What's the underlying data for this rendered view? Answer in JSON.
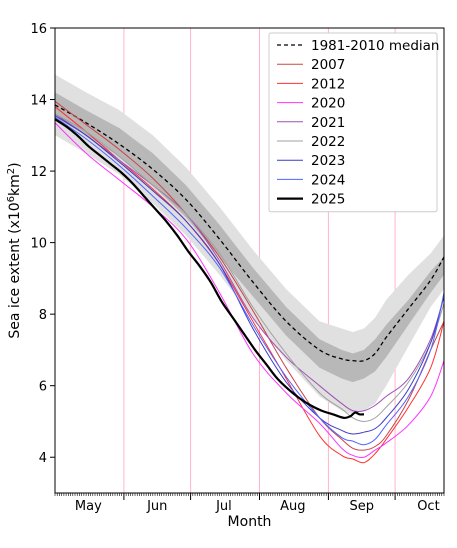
{
  "chart_data": {
    "type": "line",
    "xlabel": "Month",
    "ylabel_main": "Sea ice extent (x10",
    "ylabel_sup": "6",
    "ylabel_unit": "km",
    "ylabel_unit_sup": "2",
    "ylabel_close": ")",
    "ylim": [
      3,
      16
    ],
    "xlim_day_of_year": [
      121,
      296
    ],
    "yticks": [
      4,
      6,
      8,
      10,
      12,
      14,
      16
    ],
    "month_labels": [
      {
        "label": "May",
        "day": 136
      },
      {
        "label": "Jun",
        "day": 167
      },
      {
        "label": "Jul",
        "day": 197
      },
      {
        "label": "Aug",
        "day": 228
      },
      {
        "label": "Sep",
        "day": 259
      },
      {
        "label": "Oct",
        "day": 289
      }
    ],
    "month_boundaries": [
      152,
      182,
      213,
      244,
      274
    ],
    "grid": "vertical month lines",
    "legend_position": "top-right",
    "bands": [
      {
        "kind": "interdecile",
        "color": "#e0e0e0",
        "x": [
          121,
          135,
          150,
          165,
          180,
          195,
          210,
          225,
          240,
          250,
          255,
          260,
          265,
          270,
          280,
          290,
          296
        ],
        "lower": [
          13.0,
          12.5,
          11.9,
          11.1,
          10.2,
          9.1,
          7.9,
          6.7,
          5.7,
          5.3,
          5.2,
          5.3,
          5.5,
          6.0,
          7.1,
          8.2,
          8.7
        ],
        "upper": [
          14.7,
          14.2,
          13.7,
          13.0,
          12.1,
          11.0,
          9.8,
          8.7,
          7.8,
          7.6,
          7.5,
          7.6,
          7.9,
          8.4,
          9.1,
          9.7,
          10.2
        ]
      },
      {
        "kind": "interquartile",
        "color": "#b8b8b8",
        "x": [
          121,
          135,
          150,
          165,
          180,
          195,
          210,
          225,
          240,
          250,
          255,
          260,
          265,
          270,
          280,
          290,
          296
        ],
        "lower": [
          13.5,
          13.0,
          12.4,
          11.6,
          10.7,
          9.6,
          8.5,
          7.4,
          6.5,
          6.2,
          6.1,
          6.2,
          6.4,
          6.8,
          7.7,
          8.6,
          9.1
        ],
        "upper": [
          14.2,
          13.7,
          13.2,
          12.5,
          11.6,
          10.5,
          9.3,
          8.2,
          7.3,
          7.0,
          6.9,
          7.0,
          7.3,
          7.7,
          8.4,
          9.2,
          9.6
        ]
      }
    ],
    "series": [
      {
        "name": "1981-2010 median",
        "color": "#000000",
        "dash": "4,3",
        "width": 1.3,
        "x": [
          121,
          135,
          150,
          165,
          180,
          195,
          210,
          225,
          240,
          250,
          255,
          260,
          265,
          270,
          280,
          290,
          296
        ],
        "y": [
          13.85,
          13.35,
          12.75,
          12.05,
          11.2,
          10.1,
          8.9,
          7.8,
          7.0,
          6.75,
          6.7,
          6.7,
          6.9,
          7.35,
          8.15,
          8.95,
          9.6
        ]
      },
      {
        "name": "2007",
        "color": "#c84646",
        "dash": "",
        "width": 1.0,
        "x": [
          121,
          135,
          150,
          165,
          180,
          195,
          210,
          225,
          240,
          250,
          255,
          260,
          265,
          270,
          280,
          290,
          296
        ],
        "y": [
          13.95,
          13.3,
          12.6,
          11.8,
          10.8,
          9.6,
          8.1,
          6.5,
          5.1,
          4.5,
          4.25,
          4.2,
          4.3,
          4.6,
          5.6,
          7.0,
          7.8
        ]
      },
      {
        "name": "2012",
        "color": "#ff3030",
        "dash": "",
        "width": 1.0,
        "x": [
          121,
          135,
          150,
          165,
          180,
          195,
          210,
          225,
          240,
          250,
          255,
          260,
          265,
          270,
          280,
          290,
          296
        ],
        "y": [
          13.8,
          13.1,
          12.3,
          11.5,
          10.6,
          9.4,
          7.8,
          6.2,
          4.6,
          4.05,
          3.95,
          3.85,
          4.1,
          4.5,
          5.4,
          6.5,
          7.8
        ]
      },
      {
        "name": "2020",
        "color": "#ff33ff",
        "dash": "",
        "width": 1.0,
        "x": [
          121,
          135,
          150,
          165,
          180,
          195,
          210,
          225,
          240,
          250,
          255,
          260,
          265,
          270,
          280,
          290,
          296
        ],
        "y": [
          13.35,
          12.5,
          11.75,
          11.0,
          10.1,
          8.6,
          6.9,
          5.8,
          4.95,
          4.25,
          4.05,
          4.0,
          4.2,
          4.4,
          4.9,
          5.7,
          6.7
        ]
      },
      {
        "name": "2021",
        "color": "#a050b4",
        "dash": "",
        "width": 1.0,
        "x": [
          121,
          135,
          150,
          165,
          180,
          195,
          210,
          225,
          240,
          250,
          255,
          260,
          265,
          270,
          280,
          290,
          296
        ],
        "y": [
          13.6,
          13.0,
          12.3,
          11.6,
          10.8,
          9.5,
          7.9,
          6.8,
          6.0,
          5.5,
          5.3,
          5.3,
          5.45,
          5.7,
          6.2,
          7.3,
          8.5
        ]
      },
      {
        "name": "2022",
        "color": "#a0a0a0",
        "dash": "",
        "width": 1.0,
        "x": [
          121,
          135,
          150,
          165,
          180,
          195,
          210,
          225,
          240,
          250,
          255,
          260,
          265,
          270,
          280,
          290,
          296
        ],
        "y": [
          13.6,
          13.1,
          12.4,
          11.6,
          10.8,
          9.7,
          8.2,
          6.9,
          5.8,
          5.35,
          5.1,
          5.0,
          5.1,
          5.4,
          6.1,
          7.2,
          8.3
        ]
      },
      {
        "name": "2023",
        "color": "#3c3cc8",
        "dash": "",
        "width": 1.0,
        "x": [
          121,
          135,
          150,
          165,
          180,
          195,
          210,
          225,
          240,
          250,
          255,
          260,
          265,
          270,
          280,
          290,
          296
        ],
        "y": [
          13.55,
          13.0,
          12.25,
          11.45,
          10.6,
          9.4,
          7.6,
          6.1,
          5.1,
          4.75,
          4.65,
          4.7,
          4.8,
          5.1,
          5.9,
          7.2,
          8.5
        ]
      },
      {
        "name": "2024",
        "color": "#5064ff",
        "dash": "",
        "width": 1.0,
        "x": [
          121,
          135,
          150,
          165,
          180,
          195,
          210,
          225,
          240,
          250,
          255,
          260,
          265,
          270,
          280,
          290,
          296
        ],
        "y": [
          13.5,
          12.9,
          12.15,
          11.3,
          10.4,
          9.3,
          7.7,
          6.25,
          5.1,
          4.55,
          4.45,
          4.35,
          4.5,
          4.9,
          5.7,
          7.0,
          8.6
        ]
      },
      {
        "name": "2025",
        "color": "#000000",
        "dash": "",
        "width": 2.2,
        "x": [
          121,
          126,
          131,
          136,
          141,
          146,
          151,
          156,
          161,
          166,
          171,
          176,
          181,
          186,
          191,
          196,
          201,
          206,
          211,
          216,
          221,
          226,
          231,
          236,
          241,
          246,
          251,
          254,
          256,
          258,
          260
        ],
        "y": [
          13.45,
          13.25,
          13.0,
          12.7,
          12.45,
          12.2,
          11.95,
          11.65,
          11.3,
          10.95,
          10.6,
          10.2,
          9.75,
          9.35,
          8.9,
          8.35,
          7.9,
          7.45,
          7.0,
          6.6,
          6.2,
          5.9,
          5.65,
          5.45,
          5.3,
          5.2,
          5.1,
          5.15,
          5.25,
          5.2,
          5.2
        ]
      }
    ]
  }
}
